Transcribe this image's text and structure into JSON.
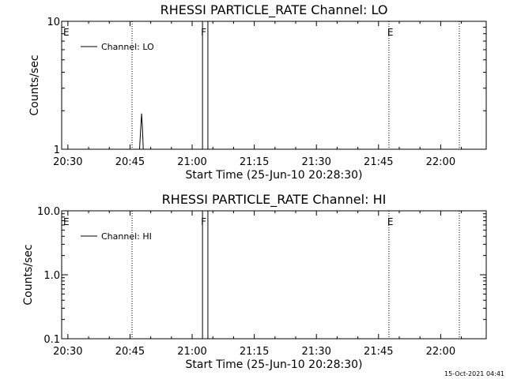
{
  "footer": {
    "timestamp": "15-Oct-2021 04:41"
  },
  "chart_data": [
    {
      "type": "line",
      "title": "RHESSI PARTICLE_RATE Channel: LO",
      "xlabel": "Start Time (25-Jun-10 20:28:30)",
      "ylabel": "Counts/sec",
      "yscale": "log",
      "xlim": [
        "20:28:30",
        "22:11:00"
      ],
      "ylim": [
        1,
        10
      ],
      "x_ticks": [
        "20:30",
        "20:45",
        "21:00",
        "21:15",
        "21:30",
        "21:45",
        "22:00"
      ],
      "y_ticks": [
        {
          "value": 10,
          "label": "10"
        },
        {
          "value": 1,
          "label": "1"
        }
      ],
      "legend": {
        "position": "top-left",
        "entries": [
          "Channel: LO"
        ]
      },
      "series": [
        {
          "name": "Channel: LO",
          "color": "#000000",
          "x": [
            "20:47:18",
            "20:47:36",
            "20:47:48",
            "20:48:00",
            "20:48:12"
          ],
          "y": [
            1,
            1.5,
            1.9,
            1.45,
            1
          ]
        }
      ],
      "flags": [
        {
          "time": "20:30:00",
          "label": "E",
          "line": false
        },
        {
          "time": "20:45:30",
          "label": "",
          "line": "dotted"
        },
        {
          "time": "21:02:30",
          "label": "F",
          "line": "solid"
        },
        {
          "time": "21:03:48",
          "label": "",
          "line": "solid"
        },
        {
          "time": "21:47:30",
          "label": "E",
          "line": "dotted"
        },
        {
          "time": "22:04:30",
          "label": "",
          "line": "dotted"
        }
      ]
    },
    {
      "type": "line",
      "title": "RHESSI PARTICLE_RATE Channel: HI",
      "xlabel": "Start Time (25-Jun-10 20:28:30)",
      "ylabel": "Counts/sec",
      "yscale": "log",
      "xlim": [
        "20:28:30",
        "22:11:00"
      ],
      "ylim": [
        0.1,
        10
      ],
      "x_ticks": [
        "20:30",
        "20:45",
        "21:00",
        "21:15",
        "21:30",
        "21:45",
        "22:00"
      ],
      "y_ticks": [
        {
          "value": 10,
          "label": "10.0"
        },
        {
          "value": 1,
          "label": "1.0"
        },
        {
          "value": 0.1,
          "label": "0.1"
        }
      ],
      "legend": {
        "position": "top-left",
        "entries": [
          "Channel: HI"
        ]
      },
      "series": [
        {
          "name": "Channel: HI",
          "color": "#000000",
          "x": [],
          "y": []
        }
      ],
      "flags": [
        {
          "time": "20:30:00",
          "label": "E",
          "line": false
        },
        {
          "time": "20:45:30",
          "label": "",
          "line": "dotted"
        },
        {
          "time": "21:02:30",
          "label": "F",
          "line": "solid"
        },
        {
          "time": "21:03:48",
          "label": "",
          "line": "solid"
        },
        {
          "time": "21:47:30",
          "label": "E",
          "line": "dotted"
        },
        {
          "time": "22:04:30",
          "label": "",
          "line": "dotted"
        }
      ]
    }
  ]
}
